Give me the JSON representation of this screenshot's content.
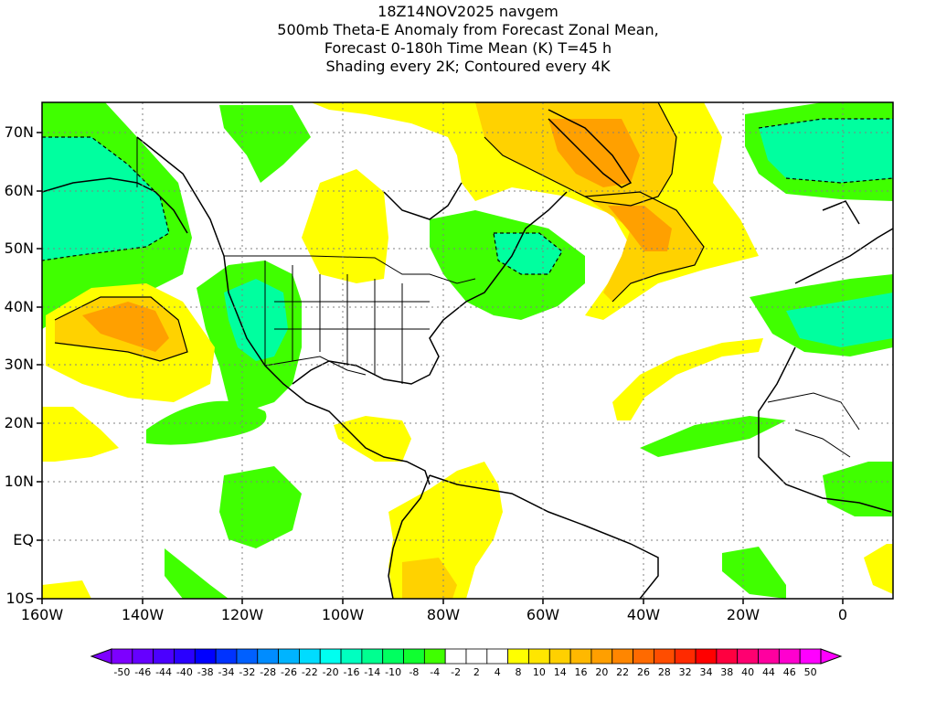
{
  "title": {
    "lines": [
      "18Z14NOV2025 navgem",
      "500mb Theta-E Anomaly from Forecast Zonal Mean,",
      "Forecast 0-180h Time Mean (K) T=45 h",
      "Shading every 2K; Contoured every 4K"
    ]
  },
  "axes": {
    "y_labels": [
      "70N",
      "60N",
      "50N",
      "40N",
      "30N",
      "20N",
      "10N",
      "EQ",
      "10S"
    ],
    "x_labels": [
      "160W",
      "140W",
      "120W",
      "100W",
      "80W",
      "60W",
      "40W",
      "20W",
      "0"
    ]
  },
  "colorbar": {
    "labels": [
      "-50",
      "-46",
      "-44",
      "-40",
      "-38",
      "-34",
      "-32",
      "-28",
      "-26",
      "-22",
      "-20",
      "-16",
      "-14",
      "-10",
      "-8",
      "-4",
      "-2",
      "2",
      "4",
      "8",
      "10",
      "14",
      "16",
      "20",
      "22",
      "26",
      "28",
      "32",
      "34",
      "38",
      "40",
      "44",
      "46",
      "50"
    ],
    "colors": [
      "#7d00ff",
      "#6600ff",
      "#4b00ff",
      "#2a00ff",
      "#0000ff",
      "#0033ff",
      "#0060ff",
      "#008cff",
      "#00b4ff",
      "#00dcff",
      "#00fff0",
      "#00ffc0",
      "#00ff90",
      "#00ff60",
      "#10ff30",
      "#40ff00",
      "#ffffff",
      "#ffffff",
      "#ffffff",
      "#ffff00",
      "#ffe600",
      "#ffd000",
      "#ffb800",
      "#ff9f00",
      "#ff8600",
      "#ff6a00",
      "#ff4d00",
      "#ff2a00",
      "#ff0000",
      "#ff0040",
      "#ff0070",
      "#ff009f",
      "#ff00cf",
      "#ff00ff"
    ]
  },
  "field_colors": {
    "neg_strong": "#00ff9f",
    "neg_weak": "#40ff00",
    "pos_weak": "#ffff00",
    "pos_mid": "#ffd200",
    "pos_strong": "#ffa000"
  }
}
